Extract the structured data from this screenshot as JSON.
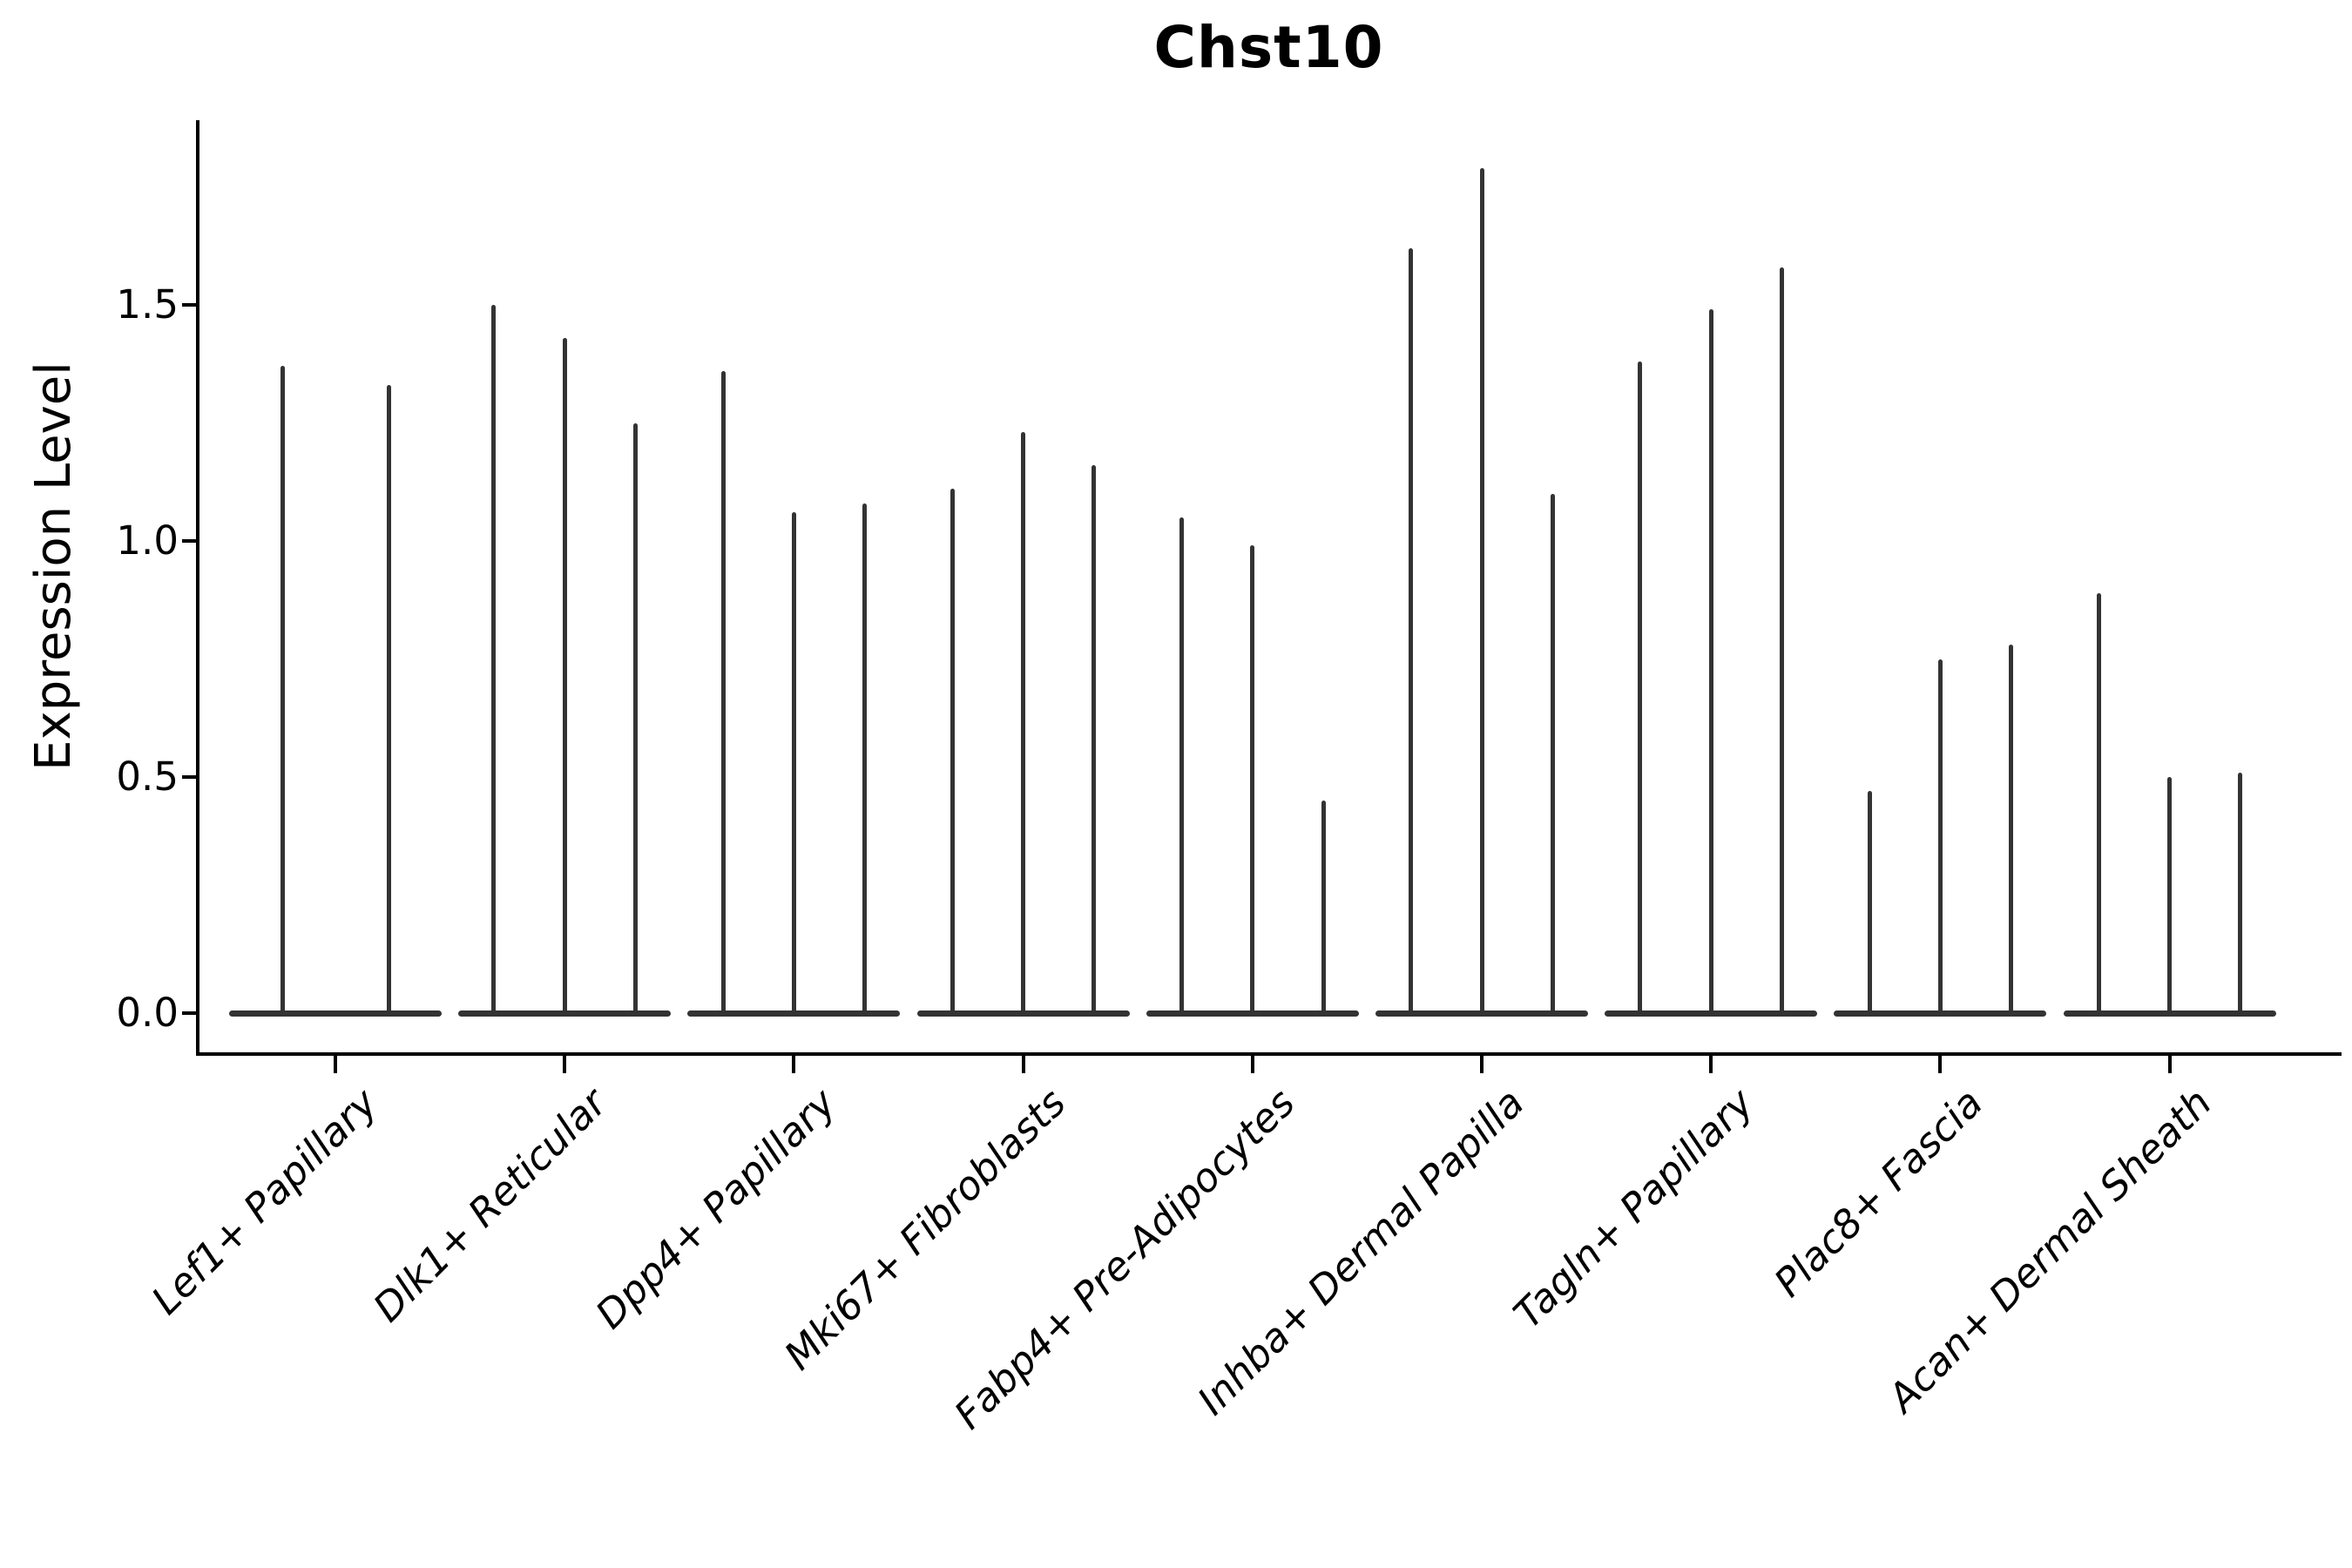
{
  "figure": {
    "title": "Chst10",
    "ylabel": "Expression Level"
  },
  "chart_data": {
    "type": "violin",
    "title": "Chst10",
    "ylabel": "Expression Level",
    "xlabel": "",
    "grid": false,
    "legend": null,
    "ylim": [
      -0.09,
      1.89
    ],
    "ytick_labels": [
      "0.0",
      "0.5",
      "1.0",
      "1.5"
    ],
    "ytick_values": [
      0.0,
      0.5,
      1.0,
      1.5
    ],
    "categories": [
      "Lef1+ Papillary",
      "Dlk1+ Reticular",
      "Dpp4+ Papillary",
      "Mki67+ Fibroblasts",
      "Fabp4+ Pre-Adipocytes",
      "Inhba+ Dermal Papilla",
      "Tagln+ Papillary",
      "Plac8+ Fascia",
      "Acan+ Dermal Sheath"
    ],
    "groups": [
      {
        "category": "Lef1+ Papillary",
        "violin_max_values": [
          1.37,
          1.33
        ]
      },
      {
        "category": "Dlk1+ Reticular",
        "violin_max_values": [
          1.5,
          1.43,
          1.25
        ]
      },
      {
        "category": "Dpp4+ Papillary",
        "violin_max_values": [
          1.36,
          1.06,
          1.08
        ]
      },
      {
        "category": "Mki67+ Fibroblasts",
        "violin_max_values": [
          1.11,
          1.23,
          1.16
        ]
      },
      {
        "category": "Fabp4+ Pre-Adipocytes",
        "violin_max_values": [
          1.05,
          0.99,
          0.45
        ]
      },
      {
        "category": "Inhba+ Dermal Papilla",
        "violin_max_values": [
          1.62,
          1.79,
          1.1
        ]
      },
      {
        "category": "Tagln+ Papillary",
        "violin_max_values": [
          1.38,
          1.49,
          1.58
        ]
      },
      {
        "category": "Plac8+ Fascia",
        "violin_max_values": [
          0.47,
          0.75,
          0.78
        ]
      },
      {
        "category": "Acan+ Dermal Sheath",
        "violin_max_values": [
          0.89,
          0.5,
          0.51
        ]
      }
    ],
    "violin_baseline_value": 0.0,
    "colors": {
      "violin": "#333333",
      "axis": "#000000",
      "text": "#000000",
      "background": "#ffffff"
    }
  }
}
